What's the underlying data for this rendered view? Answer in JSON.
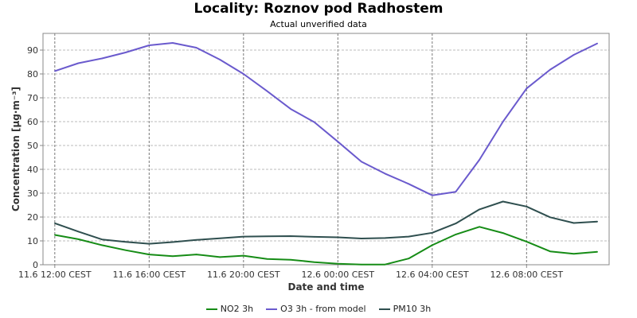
{
  "chart_data": {
    "type": "line",
    "title": "Locality: Roznov pod Radhostem",
    "subtitle": "Actual unverified data",
    "xlabel": "Date and time",
    "ylabel": "Concentration [µg·m⁻³]",
    "ylim": [
      0,
      97
    ],
    "yticks": [
      0,
      10,
      20,
      30,
      40,
      50,
      60,
      70,
      80,
      90
    ],
    "xlim": [
      -0.5,
      23.5
    ],
    "xticks": [
      {
        "x": 0,
        "label": "11.6 12:00 CEST"
      },
      {
        "x": 4,
        "label": "11.6 16:00 CEST"
      },
      {
        "x": 8,
        "label": "11.6 20:00 CEST"
      },
      {
        "x": 12,
        "label": "12.6 00:00 CEST"
      },
      {
        "x": 16,
        "label": "12.6 04:00 CEST"
      },
      {
        "x": 20,
        "label": "12.6 08:00 CEST"
      }
    ],
    "grid": true,
    "legend_position": "bottom",
    "x": [
      0,
      1,
      2,
      3,
      4,
      5,
      6,
      7,
      8,
      9,
      10,
      11,
      12,
      13,
      14,
      15,
      16,
      17,
      18,
      19,
      20,
      21,
      22,
      23
    ],
    "series": [
      {
        "name": "NO2 3h",
        "color": "#168c16",
        "values": [
          12.5,
          10.7,
          8.2,
          6.1,
          4.3,
          3.6,
          4.3,
          3.2,
          3.8,
          2.4,
          2.1,
          1.1,
          0.4,
          0.1,
          0.1,
          2.6,
          8.2,
          12.7,
          15.9,
          13.3,
          9.7,
          5.6,
          4.6,
          5.4
        ]
      },
      {
        "name": "O3 3h - from model",
        "color": "#6a5acd",
        "values": [
          81.2,
          84.5,
          86.5,
          89.0,
          92.0,
          93.0,
          91.0,
          86.0,
          80.0,
          72.8,
          65.3,
          59.8,
          51.6,
          43.2,
          38.2,
          33.9,
          29.1,
          30.6,
          44.0,
          60.0,
          73.9,
          81.8,
          88.0,
          92.8
        ]
      },
      {
        "name": "PM10 3h",
        "color": "#2f4f4f",
        "values": [
          17.4,
          13.9,
          10.6,
          9.6,
          8.8,
          9.5,
          10.4,
          11.1,
          11.8,
          11.9,
          12.0,
          11.7,
          11.5,
          11.0,
          11.2,
          11.8,
          13.4,
          17.3,
          23.2,
          26.5,
          24.4,
          19.9,
          17.5,
          18.1
        ]
      }
    ]
  }
}
